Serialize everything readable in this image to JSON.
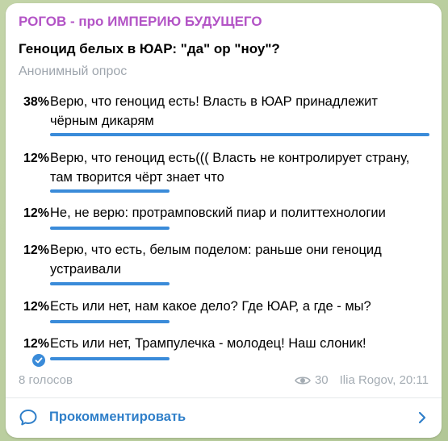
{
  "post": {
    "channel_name": "РОГОВ - про ИМПЕРИЮ БУДУЩЕГО",
    "question": "Геноцид белых в ЮАР: \"да\" ор \"ноу\"?",
    "poll_type": "Анонимный опрос"
  },
  "options": [
    {
      "percent": "38%",
      "text": "Верю, что геноцид есть! Власть в ЮАР принадлежит чёрным дикарям",
      "fraction": 0.38,
      "selected": false
    },
    {
      "percent": "12%",
      "text": "Верю, что геноцид есть((( Власть не контролирует страну, там творится чёрт знает что",
      "fraction": 0.12,
      "selected": false
    },
    {
      "percent": "12%",
      "text": "Не, не верю: протрамповский пиар и политтехнологии",
      "fraction": 0.12,
      "selected": false
    },
    {
      "percent": "12%",
      "text": "Верю, что есть, белым поделом: раньше они геноцид устраивали",
      "fraction": 0.12,
      "selected": false
    },
    {
      "percent": "12%",
      "text": "Есть или нет, нам какое дело? Где ЮАР, а где - мы?",
      "fraction": 0.12,
      "selected": false
    },
    {
      "percent": "12%",
      "text": "Есть или нет, Трампулечка - молодец! Наш слоник!",
      "fraction": 0.12,
      "selected": true
    }
  ],
  "footer": {
    "votes": "8 голосов",
    "views": "30",
    "author": "Ilia Rogov",
    "time": "20:11"
  },
  "comments": {
    "label": "Прокомментировать"
  },
  "colors": {
    "channel_name": "#b354c6",
    "accent": "#3a8bd9",
    "muted": "#a4acb3"
  },
  "icons": {
    "views": "eye-icon",
    "comment": "comment-bubble-icon",
    "selected": "check-circle-icon",
    "open": "chevron-right-icon"
  }
}
